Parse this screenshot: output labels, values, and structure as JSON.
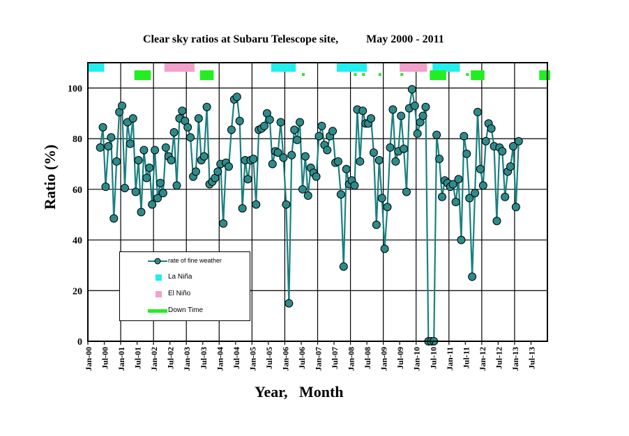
{
  "chart_data": {
    "type": "line",
    "title": "Clear sky ratios at Subaru Telescope site,",
    "subtitle": "May 2000 - 2011",
    "xlabel": "Year,   Month",
    "ylabel": "Ratio (%)",
    "ylim": [
      0,
      110
    ],
    "yticks": [
      0,
      20,
      40,
      60,
      80,
      100
    ],
    "xlim": [
      "2000-01",
      "2013-12"
    ],
    "xtick_labels": [
      "Jan-00",
      "Jul-00",
      "Jan-01",
      "Jul-01",
      "Jan-02",
      "Jul-02",
      "Jan-03",
      "Jul-03",
      "Jan-04",
      "Jul-04",
      "Jan-05",
      "Jul-05",
      "Jan-06",
      "Jul-06",
      "Jan-07",
      "Jul-07",
      "Jan-08",
      "Jul-08",
      "Jan-09",
      "Jul-09",
      "Jan-10",
      "Jul-10",
      "Jan-11",
      "Jul-11",
      "Jan-12",
      "Jul-12",
      "Jan-13",
      "Jul-13"
    ],
    "grid": true,
    "legend_position": "lower-left",
    "series": [
      {
        "name": "rate of fine weather",
        "color": "#1a8080",
        "marker_fill": "#2e8b8b",
        "start": "2000-05",
        "values": [
          76.5,
          84.5,
          61,
          77,
          80.5,
          48.5,
          71,
          90.5,
          93,
          60.5,
          86.5,
          78,
          88,
          59,
          71.5,
          51,
          75.5,
          64.5,
          68.5,
          54,
          75.5,
          56.5,
          62.5,
          58.5,
          76.5,
          73,
          71.5,
          82.5,
          61.5,
          88,
          91,
          87,
          84.5,
          80.5,
          65,
          67,
          88,
          71.5,
          73,
          92.5,
          62,
          63,
          64.5,
          67,
          70,
          46.5,
          70.5,
          69,
          83.5,
          95.5,
          96.5,
          87,
          52.5,
          71.5,
          64,
          71.5,
          72,
          54,
          83.5,
          84,
          85,
          90,
          87.5,
          70,
          75,
          74.5,
          86.5,
          72.5,
          54,
          15,
          73.5,
          83.5,
          79.5,
          86.5,
          60,
          73,
          57.5,
          68.5,
          66.5,
          65,
          81,
          85,
          77.5,
          75.5,
          81,
          83,
          70.5,
          71,
          58,
          29.5,
          68,
          62,
          63.5,
          61.5,
          91.5,
          71,
          91,
          86,
          86,
          88,
          74.5,
          46,
          71.5,
          56.5,
          36.5,
          53,
          76.5,
          91.5,
          71,
          75,
          89,
          76,
          59,
          92,
          99.5,
          93,
          82,
          86.5,
          89,
          92.5,
          0,
          0,
          0,
          81.5,
          72,
          57,
          63.5,
          62.5,
          61,
          62,
          55,
          64,
          40,
          81,
          74,
          56.5,
          25.5,
          58.5,
          90.5,
          68,
          61.5,
          79,
          86,
          84,
          77,
          47.5,
          76.5,
          75,
          57,
          67,
          69,
          77,
          53,
          79
        ]
      }
    ],
    "la_nina_periods": [
      [
        "2000-01",
        "2000-06"
      ],
      [
        "2005-08",
        "2006-04"
      ],
      [
        "2007-08",
        "2008-06"
      ],
      [
        "2010-07",
        "2011-04"
      ]
    ],
    "el_nino_periods": [
      [
        "2002-05",
        "2003-03"
      ],
      [
        "2009-07",
        "2010-04"
      ]
    ],
    "down_time_periods": [
      [
        "2001-06",
        "2001-11"
      ],
      [
        "2003-06",
        "2003-10"
      ],
      [
        "2006-07",
        "2006-07"
      ],
      [
        "2008-02",
        "2008-02"
      ],
      [
        "2008-05",
        "2008-05"
      ],
      [
        "2008-11",
        "2008-11"
      ],
      [
        "2009-07",
        "2009-07"
      ],
      [
        "2010-06",
        "2010-11"
      ],
      [
        "2011-07",
        "2011-07"
      ],
      [
        "2011-09",
        "2012-01"
      ],
      [
        "2013-10",
        "2014-01"
      ]
    ],
    "legend": [
      {
        "label": "rate of fine weather",
        "kind": "line-marker",
        "color": "#1a8080"
      },
      {
        "label": "La Niña",
        "kind": "square",
        "color": "#22eeee"
      },
      {
        "label": "El Niño",
        "kind": "square",
        "color": "#f2a0cc"
      },
      {
        "label": "Down Time",
        "kind": "line",
        "color": "#22ee22"
      }
    ]
  }
}
